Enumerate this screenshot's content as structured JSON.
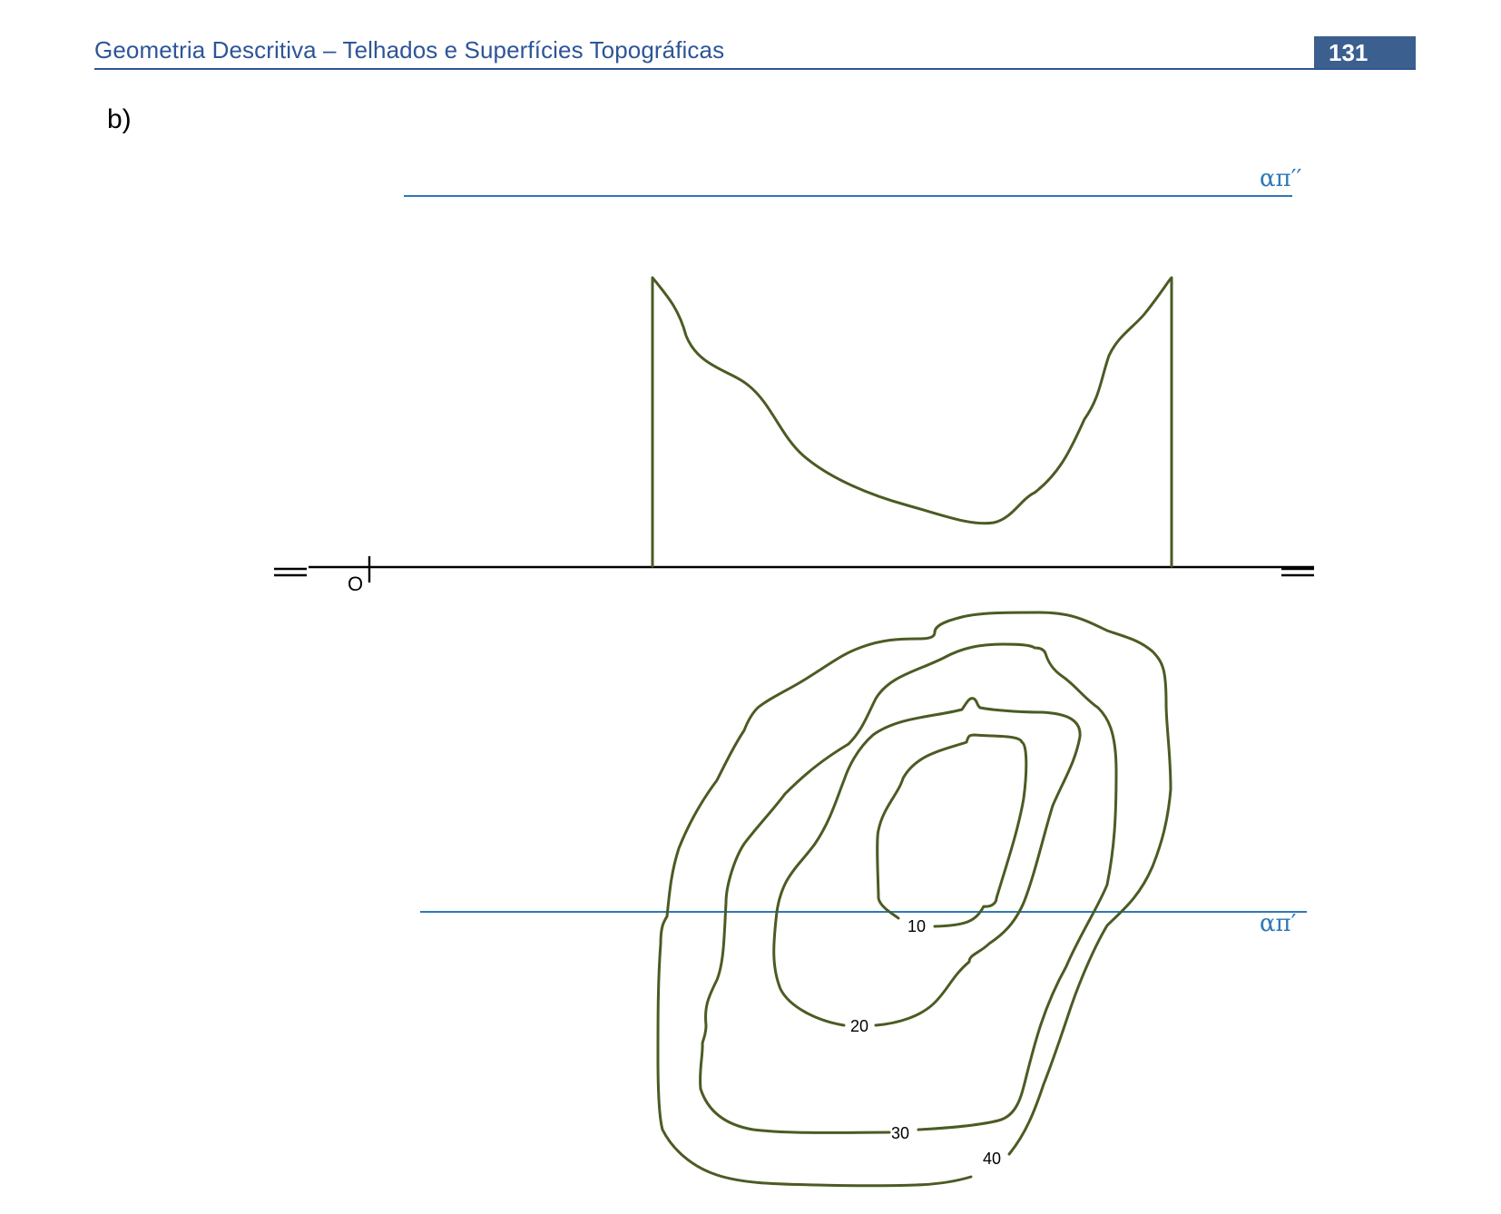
{
  "header": {
    "title": "Geometria Descritiva – Telhados e Superfícies Topográficas",
    "page_number": "131"
  },
  "section_label": "b)",
  "drawing": {
    "plane_labels": {
      "frontal_trace": "απ′′",
      "horizontal_trace": "απ′"
    },
    "origin_label": "O",
    "contour_labels": [
      "10",
      "20",
      "30",
      "40"
    ],
    "colors": {
      "contour": "#4b5b23",
      "plane": "#2f78b8",
      "header": "#2e5597",
      "badge": "#3b5f8e"
    }
  }
}
